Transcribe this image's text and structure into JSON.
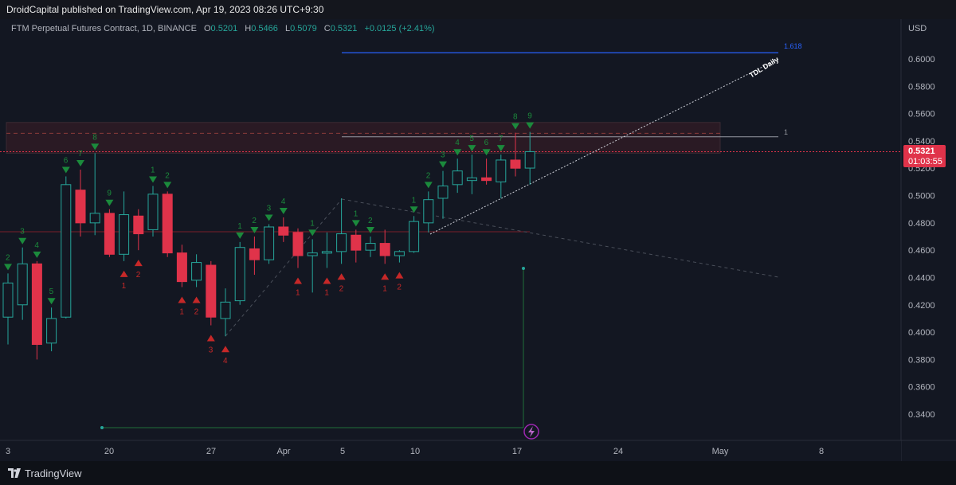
{
  "header": {
    "publish_line": "DroidCapital published on TradingView.com, Apr 19, 2023 08:26 UTC+9:30"
  },
  "legend": {
    "symbol": "FTM Perpetual Futures Contract, 1D, BINANCE",
    "open_label": "O",
    "open": "0.5201",
    "high_label": "H",
    "high": "0.5466",
    "low_label": "L",
    "low": "0.5079",
    "close_label": "C",
    "close": "0.5321",
    "change": "+0.0125 (+2.41%)"
  },
  "price_axis": {
    "currency": "USD",
    "ticks": [
      "0.6000",
      "0.5800",
      "0.5600",
      "0.5400",
      "0.5200",
      "0.5000",
      "0.4800",
      "0.4600",
      "0.4400",
      "0.4200",
      "0.4000",
      "0.3800",
      "0.3600",
      "0.3400"
    ],
    "current_price": "0.5321",
    "countdown": "01:03:55"
  },
  "time_axis": {
    "ticks": [
      "3",
      "20",
      "27",
      "Apr",
      "5",
      "10",
      "17",
      "24",
      "May",
      "8"
    ]
  },
  "annotations": {
    "fib_upper": "1.618",
    "fib_lower": "1",
    "trendline_label": "TDL Daily"
  },
  "footer": {
    "brand": "TradingView"
  },
  "colors": {
    "background": "#131722",
    "bull": "#26a69a",
    "bear": "#e0334a",
    "fib_blue": "#2962ff",
    "zone": "#3a1f2a",
    "text": "#b2b5be"
  },
  "chart_data": {
    "type": "candlestick",
    "title": "FTM Perpetual Futures Contract, 1D, BINANCE",
    "ylabel": "USD",
    "ylim": [
      0.33,
      0.62
    ],
    "candles": [
      {
        "o": 0.411,
        "h": 0.443,
        "l": 0.391,
        "c": 0.436
      },
      {
        "o": 0.42,
        "h": 0.462,
        "l": 0.409,
        "c": 0.45
      },
      {
        "o": 0.45,
        "h": 0.452,
        "l": 0.38,
        "c": 0.391
      },
      {
        "o": 0.392,
        "h": 0.418,
        "l": 0.386,
        "c": 0.41
      },
      {
        "o": 0.411,
        "h": 0.514,
        "l": 0.41,
        "c": 0.508
      },
      {
        "o": 0.504,
        "h": 0.519,
        "l": 0.47,
        "c": 0.48
      },
      {
        "o": 0.48,
        "h": 0.531,
        "l": 0.471,
        "c": 0.487
      },
      {
        "o": 0.487,
        "h": 0.49,
        "l": 0.455,
        "c": 0.457
      },
      {
        "o": 0.457,
        "h": 0.503,
        "l": 0.452,
        "c": 0.486
      },
      {
        "o": 0.485,
        "h": 0.49,
        "l": 0.46,
        "c": 0.472
      },
      {
        "o": 0.475,
        "h": 0.507,
        "l": 0.47,
        "c": 0.501
      },
      {
        "o": 0.501,
        "h": 0.503,
        "l": 0.455,
        "c": 0.458
      },
      {
        "o": 0.458,
        "h": 0.464,
        "l": 0.433,
        "c": 0.437
      },
      {
        "o": 0.438,
        "h": 0.457,
        "l": 0.433,
        "c": 0.451
      },
      {
        "o": 0.449,
        "h": 0.452,
        "l": 0.405,
        "c": 0.411
      },
      {
        "o": 0.41,
        "h": 0.432,
        "l": 0.397,
        "c": 0.422
      },
      {
        "o": 0.423,
        "h": 0.466,
        "l": 0.42,
        "c": 0.462
      },
      {
        "o": 0.461,
        "h": 0.47,
        "l": 0.442,
        "c": 0.453
      },
      {
        "o": 0.453,
        "h": 0.479,
        "l": 0.45,
        "c": 0.477
      },
      {
        "o": 0.477,
        "h": 0.484,
        "l": 0.466,
        "c": 0.471
      },
      {
        "o": 0.473,
        "h": 0.476,
        "l": 0.447,
        "c": 0.456
      },
      {
        "o": 0.456,
        "h": 0.468,
        "l": 0.429,
        "c": 0.458
      },
      {
        "o": 0.458,
        "h": 0.473,
        "l": 0.447,
        "c": 0.459
      },
      {
        "o": 0.459,
        "h": 0.498,
        "l": 0.45,
        "c": 0.472
      },
      {
        "o": 0.471,
        "h": 0.475,
        "l": 0.451,
        "c": 0.46
      },
      {
        "o": 0.46,
        "h": 0.47,
        "l": 0.455,
        "c": 0.465
      },
      {
        "o": 0.465,
        "h": 0.475,
        "l": 0.45,
        "c": 0.456
      },
      {
        "o": 0.456,
        "h": 0.46,
        "l": 0.451,
        "c": 0.459
      },
      {
        "o": 0.459,
        "h": 0.485,
        "l": 0.458,
        "c": 0.481
      },
      {
        "o": 0.48,
        "h": 0.503,
        "l": 0.473,
        "c": 0.497
      },
      {
        "o": 0.498,
        "h": 0.518,
        "l": 0.483,
        "c": 0.507
      },
      {
        "o": 0.508,
        "h": 0.527,
        "l": 0.502,
        "c": 0.518
      },
      {
        "o": 0.511,
        "h": 0.53,
        "l": 0.501,
        "c": 0.513
      },
      {
        "o": 0.513,
        "h": 0.527,
        "l": 0.508,
        "c": 0.511
      },
      {
        "o": 0.51,
        "h": 0.53,
        "l": 0.498,
        "c": 0.526
      },
      {
        "o": 0.526,
        "h": 0.546,
        "l": 0.514,
        "c": 0.52
      },
      {
        "o": 0.5201,
        "h": 0.5466,
        "l": 0.5079,
        "c": 0.5321
      }
    ],
    "horizontal_levels": [
      {
        "label": "1.618",
        "value": 0.6045,
        "color": "#2962ff"
      },
      {
        "label": "1",
        "value": 0.543,
        "color": "#9598a1"
      },
      {
        "label": "",
        "value": 0.5321,
        "color": "#e0334a"
      }
    ],
    "resistance_zone": [
      0.531,
      0.5535
    ],
    "support_line": 0.4735,
    "signals": [
      {
        "i": 0,
        "dir": "up",
        "n": "2"
      },
      {
        "i": 1,
        "dir": "up",
        "n": "3"
      },
      {
        "i": 2,
        "dir": "up",
        "n": "4"
      },
      {
        "i": 3,
        "dir": "up",
        "n": "5"
      },
      {
        "i": 4,
        "dir": "up",
        "n": "6"
      },
      {
        "i": 5,
        "dir": "up",
        "n": "7"
      },
      {
        "i": 6,
        "dir": "up",
        "n": "8"
      },
      {
        "i": 7,
        "dir": "up",
        "n": "9"
      },
      {
        "i": 8,
        "dir": "dn",
        "n": "1"
      },
      {
        "i": 9,
        "dir": "dn",
        "n": "2"
      },
      {
        "i": 10,
        "dir": "up",
        "n": "1"
      },
      {
        "i": 11,
        "dir": "up",
        "n": "2"
      },
      {
        "i": 12,
        "dir": "dn",
        "n": "1"
      },
      {
        "i": 13,
        "dir": "dn",
        "n": "2"
      },
      {
        "i": 14,
        "dir": "dn",
        "n": "3"
      },
      {
        "i": 15,
        "dir": "dn",
        "n": "4"
      },
      {
        "i": 16,
        "dir": "up",
        "n": "1"
      },
      {
        "i": 17,
        "dir": "up",
        "n": "2"
      },
      {
        "i": 18,
        "dir": "up",
        "n": "3"
      },
      {
        "i": 19,
        "dir": "up",
        "n": "4"
      },
      {
        "i": 20,
        "dir": "dn",
        "n": "1"
      },
      {
        "i": 21,
        "dir": "up",
        "n": "1"
      },
      {
        "i": 22,
        "dir": "dn",
        "n": "1"
      },
      {
        "i": 23,
        "dir": "dn",
        "n": "2"
      },
      {
        "i": 24,
        "dir": "up",
        "n": "1"
      },
      {
        "i": 25,
        "dir": "up",
        "n": "2"
      },
      {
        "i": 26,
        "dir": "dn",
        "n": "1"
      },
      {
        "i": 27,
        "dir": "dn",
        "n": "2"
      },
      {
        "i": 28,
        "dir": "up",
        "n": "1"
      },
      {
        "i": 29,
        "dir": "up",
        "n": "2"
      },
      {
        "i": 30,
        "dir": "up",
        "n": "3"
      },
      {
        "i": 31,
        "dir": "up",
        "n": "4"
      },
      {
        "i": 32,
        "dir": "up",
        "n": "5"
      },
      {
        "i": 33,
        "dir": "up",
        "n": "6"
      },
      {
        "i": 34,
        "dir": "up",
        "n": "7"
      },
      {
        "i": 35,
        "dir": "up",
        "n": "8"
      },
      {
        "i": 36,
        "dir": "up",
        "n": "9"
      }
    ]
  }
}
